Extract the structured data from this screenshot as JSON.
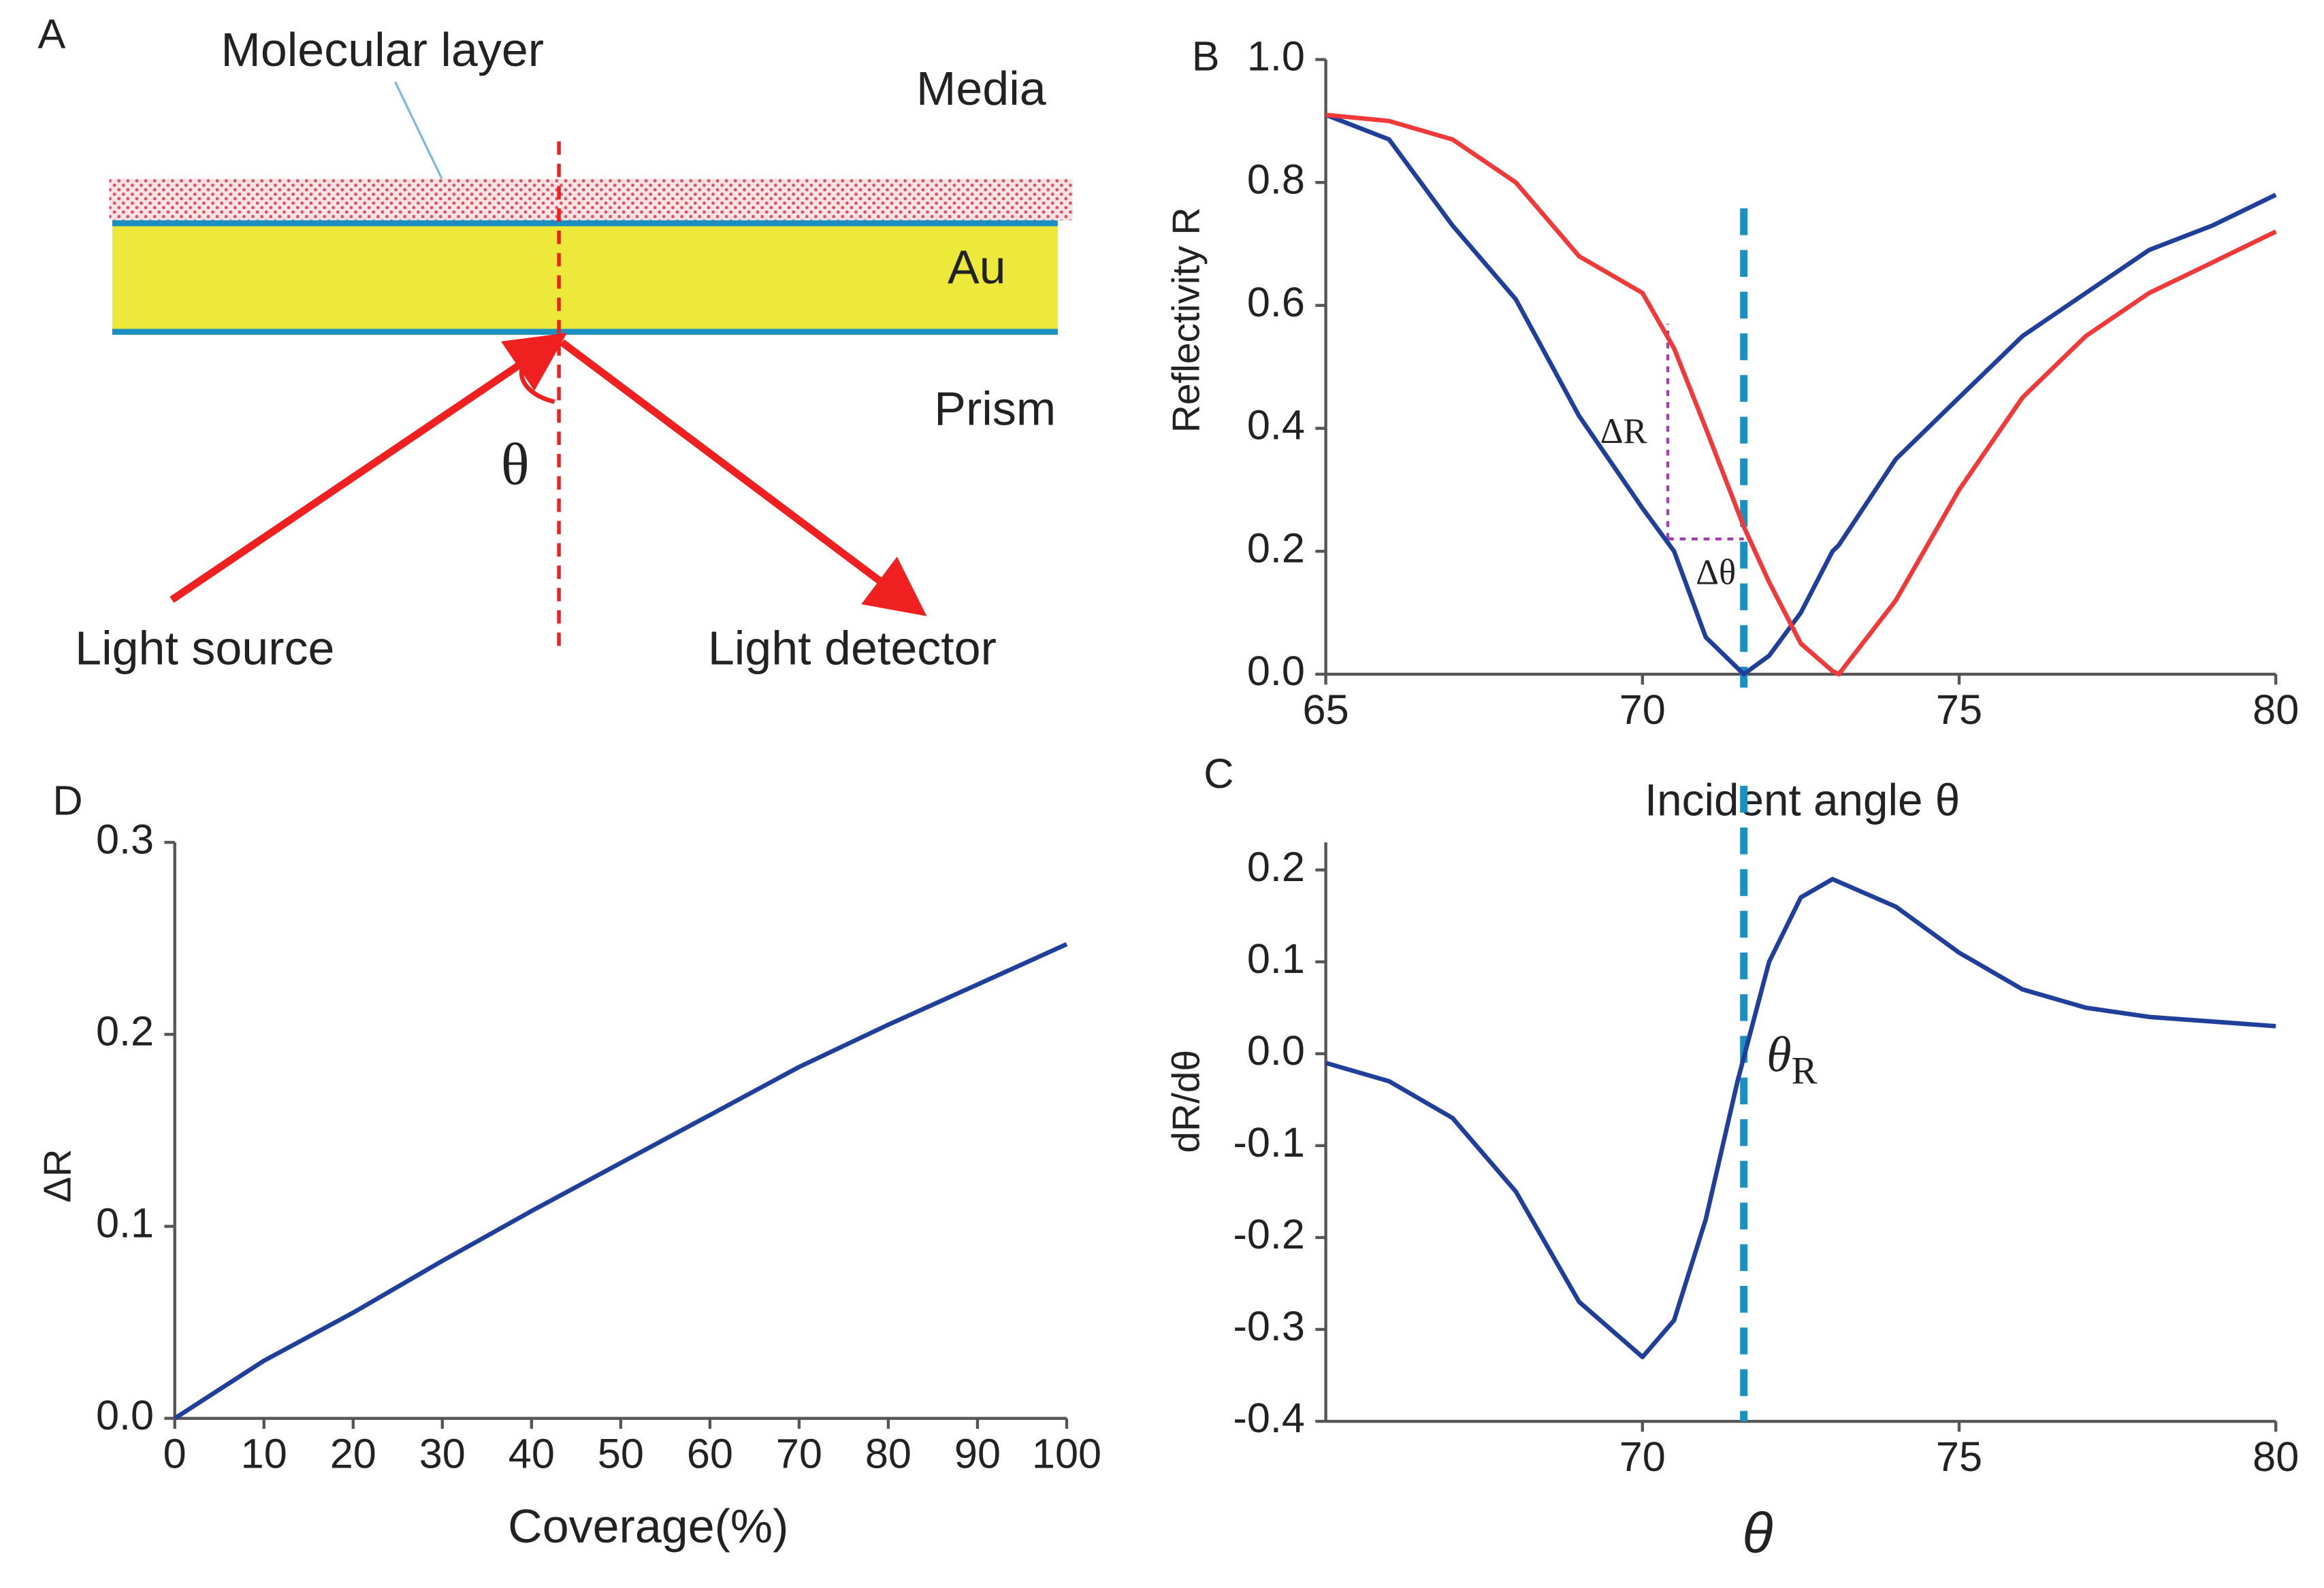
{
  "diagram": {
    "panel": "A",
    "layer_label": "Molecular layer",
    "media": "Media",
    "metal": "Au",
    "prism": "Prism",
    "angle": "θ",
    "source": "Light source",
    "detector": "Light detector"
  },
  "chart_data": [
    {
      "type": "line",
      "panel": "B",
      "x_label": "Incident angle θ",
      "y_label": "Reflectivity R",
      "x": [
        65,
        66,
        67,
        68,
        69,
        70,
        70.5,
        71,
        71.6,
        72,
        72.5,
        73,
        73.1,
        74,
        75,
        76,
        77,
        78,
        79,
        80
      ],
      "series": [
        {
          "color": "#1f3f9a",
          "values": [
            0.91,
            0.87,
            0.73,
            0.61,
            0.42,
            0.27,
            0.2,
            0.06,
            0.0,
            0.03,
            0.1,
            0.2,
            0.21,
            0.35,
            0.45,
            0.55,
            0.62,
            0.69,
            0.73,
            0.78
          ]
        },
        {
          "color": "#f03a3a",
          "values": [
            0.91,
            0.9,
            0.87,
            0.8,
            0.68,
            0.62,
            0.53,
            0.4,
            0.24,
            0.15,
            0.05,
            0.005,
            0.0,
            0.12,
            0.3,
            0.45,
            0.55,
            0.62,
            0.67,
            0.72
          ]
        }
      ],
      "xlim": [
        65,
        80
      ],
      "ylim": [
        0,
        1.0
      ],
      "xticks": [
        65,
        70,
        75,
        80
      ],
      "yticks": [
        {
          "value": 0,
          "label": "0.0"
        },
        0.2,
        0.4,
        0.6,
        0.8,
        {
          "value": 1,
          "label": "1.0"
        }
      ],
      "vline": 71.6,
      "delta_box": {
        "x": [
          70.4,
          71.6
        ],
        "y": [
          0.22,
          0.57
        ]
      },
      "annotations": [
        "ΔR",
        "Δθ"
      ]
    },
    {
      "type": "line",
      "panel": "C",
      "x_label": "θ",
      "y_label": "dR/dθ",
      "x": [
        65,
        66,
        67,
        68,
        69,
        70,
        70.5,
        71,
        71.5,
        72,
        72.5,
        73,
        74,
        75,
        76,
        77,
        78,
        79,
        80
      ],
      "series": [
        {
          "color": "#1f3f9a",
          "values": [
            -0.01,
            -0.03,
            -0.07,
            -0.15,
            -0.27,
            -0.33,
            -0.29,
            -0.18,
            -0.03,
            0.1,
            0.17,
            0.19,
            0.16,
            0.11,
            0.07,
            0.05,
            0.04,
            0.035,
            0.03
          ]
        }
      ],
      "xlim": [
        65,
        80
      ],
      "ylim": [
        -0.4,
        0.23
      ],
      "xticks": [
        70,
        75,
        80
      ],
      "yticks": [
        -0.4,
        -0.3,
        -0.2,
        -0.1,
        {
          "value": 0,
          "label": "0.0"
        },
        0.1,
        0.2
      ],
      "vline": 71.6,
      "annotation": {
        "symbol": "θ",
        "subscript": "R"
      }
    },
    {
      "type": "line",
      "panel": "D",
      "x_label": "Coverage(%)",
      "y_label": "ΔR",
      "x": [
        0,
        10,
        20,
        30,
        40,
        50,
        60,
        70,
        80,
        90,
        100
      ],
      "series": [
        {
          "color": "#1f3f9a",
          "values": [
            0,
            0.03,
            0.055,
            0.082,
            0.108,
            0.133,
            0.158,
            0.183,
            0.205,
            0.226,
            0.247
          ]
        }
      ],
      "xlim": [
        0,
        100
      ],
      "ylim": [
        0,
        0.3
      ],
      "xticks": [
        0,
        10,
        20,
        30,
        40,
        50,
        60,
        70,
        80,
        90,
        100
      ],
      "yticks": [
        {
          "value": 0,
          "label": "0.0"
        },
        0.1,
        0.2,
        0.3
      ]
    }
  ]
}
